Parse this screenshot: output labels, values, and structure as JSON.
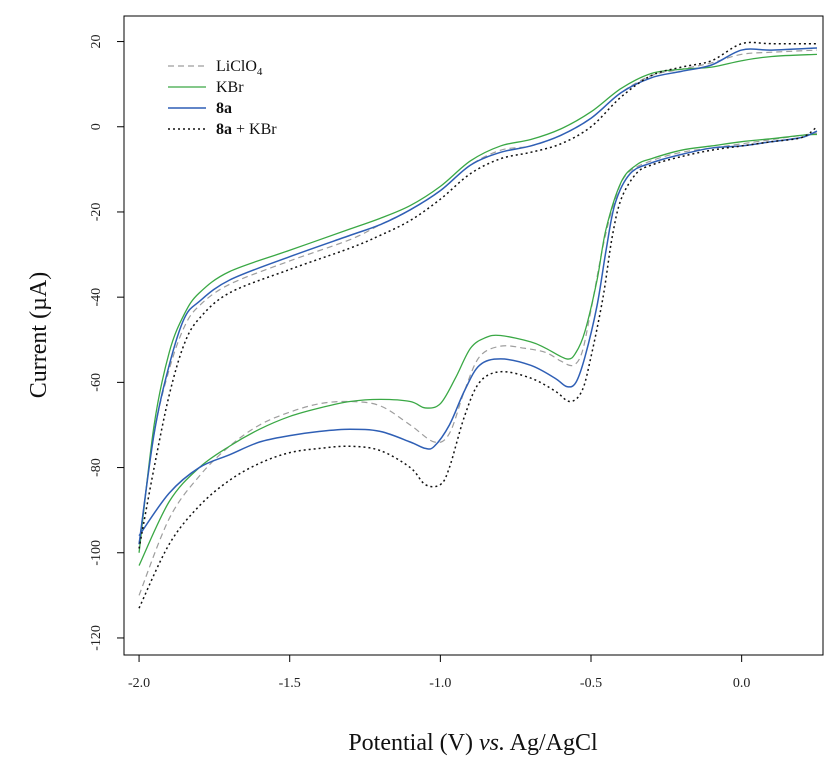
{
  "chart_data": {
    "type": "line",
    "xlabel_main": "Potential (V) ",
    "xlabel_italic": "vs.",
    "xlabel_tail": " Ag/AgCl",
    "ylabel": "Current (µA)",
    "xlim": [
      -2.05,
      0.27
    ],
    "ylim": [
      -124,
      26
    ],
    "x_ticks": [
      -2.0,
      -1.5,
      -1.0,
      -0.5,
      0.0
    ],
    "x_tick_labels": [
      "-2.0",
      "-1.5",
      "-1.0",
      "-0.5",
      "0.0"
    ],
    "y_ticks": [
      20,
      0,
      -20,
      -40,
      -60,
      -80,
      -100,
      -120
    ],
    "y_tick_labels": [
      "20",
      "0",
      "-20",
      "-40",
      "-60",
      "-80",
      "-100",
      "-120"
    ],
    "grid": false,
    "legend_position": "top-left",
    "legend": [
      {
        "label_bold": "",
        "label_main": "LiClO",
        "label_sub": "4",
        "label_tail": "",
        "color": "#9e9e9e",
        "dash": "6,4",
        "width": 1.2
      },
      {
        "label_bold": "",
        "label_main": "KBr",
        "label_sub": "",
        "label_tail": "",
        "color": "#3aa845",
        "dash": "",
        "width": 1.3
      },
      {
        "label_bold": "8a",
        "label_main": "",
        "label_sub": "",
        "label_tail": "",
        "color": "#2f5fb5",
        "dash": "",
        "width": 1.5
      },
      {
        "label_bold": "8a",
        "label_main": "",
        "label_sub": "",
        "label_tail": " + KBr",
        "color": "#111111",
        "dash": "2,3",
        "width": 1.5
      }
    ],
    "series": [
      {
        "name": "LiClO4",
        "upper": [
          [
            -2.0,
            -98
          ],
          [
            -1.95,
            -72
          ],
          [
            -1.9,
            -57
          ],
          [
            -1.85,
            -47
          ],
          [
            -1.8,
            -42
          ],
          [
            -1.7,
            -37
          ],
          [
            -1.5,
            -31.5
          ],
          [
            -1.3,
            -26.5
          ],
          [
            -1.2,
            -23
          ],
          [
            -1.1,
            -19.5
          ],
          [
            -1.0,
            -15
          ],
          [
            -0.9,
            -9
          ],
          [
            -0.8,
            -5.5
          ],
          [
            -0.7,
            -4.5
          ],
          [
            -0.6,
            -2
          ],
          [
            -0.5,
            2
          ],
          [
            -0.4,
            8
          ],
          [
            -0.3,
            12
          ],
          [
            -0.2,
            13.5
          ],
          [
            -0.1,
            15
          ],
          [
            0.0,
            17
          ],
          [
            0.1,
            17.5
          ],
          [
            0.25,
            18
          ]
        ],
        "lower": [
          [
            -2.0,
            -110
          ],
          [
            -1.9,
            -92
          ],
          [
            -1.8,
            -82
          ],
          [
            -1.7,
            -75
          ],
          [
            -1.6,
            -70
          ],
          [
            -1.5,
            -67
          ],
          [
            -1.4,
            -65
          ],
          [
            -1.3,
            -64.5
          ],
          [
            -1.2,
            -65.5
          ],
          [
            -1.1,
            -70
          ],
          [
            -1.02,
            -74
          ],
          [
            -0.97,
            -72
          ],
          [
            -0.92,
            -62
          ],
          [
            -0.87,
            -54
          ],
          [
            -0.8,
            -51.5
          ],
          [
            -0.72,
            -52
          ],
          [
            -0.65,
            -53
          ],
          [
            -0.6,
            -55
          ],
          [
            -0.56,
            -56
          ],
          [
            -0.53,
            -53
          ],
          [
            -0.5,
            -43
          ],
          [
            -0.46,
            -28
          ],
          [
            -0.42,
            -17
          ],
          [
            -0.38,
            -11
          ],
          [
            -0.3,
            -8
          ],
          [
            -0.2,
            -6
          ],
          [
            -0.1,
            -5
          ],
          [
            0.0,
            -4
          ],
          [
            0.1,
            -3
          ],
          [
            0.2,
            -2
          ],
          [
            0.25,
            -1.5
          ]
        ]
      },
      {
        "name": "KBr",
        "upper": [
          [
            -2.0,
            -100
          ],
          [
            -1.95,
            -70
          ],
          [
            -1.9,
            -53
          ],
          [
            -1.85,
            -44
          ],
          [
            -1.8,
            -39
          ],
          [
            -1.7,
            -34
          ],
          [
            -1.5,
            -29
          ],
          [
            -1.3,
            -24
          ],
          [
            -1.2,
            -21.5
          ],
          [
            -1.1,
            -18.5
          ],
          [
            -1.0,
            -14
          ],
          [
            -0.9,
            -8
          ],
          [
            -0.8,
            -4.5
          ],
          [
            -0.7,
            -3
          ],
          [
            -0.6,
            -0.5
          ],
          [
            -0.5,
            3.5
          ],
          [
            -0.4,
            9
          ],
          [
            -0.3,
            12.5
          ],
          [
            -0.2,
            13.5
          ],
          [
            -0.1,
            14
          ],
          [
            0.0,
            15.5
          ],
          [
            0.1,
            16.5
          ],
          [
            0.25,
            17
          ]
        ],
        "lower": [
          [
            -2.0,
            -103
          ],
          [
            -1.9,
            -88
          ],
          [
            -1.8,
            -80
          ],
          [
            -1.7,
            -75
          ],
          [
            -1.6,
            -71
          ],
          [
            -1.5,
            -68
          ],
          [
            -1.4,
            -66
          ],
          [
            -1.3,
            -64.5
          ],
          [
            -1.2,
            -64
          ],
          [
            -1.1,
            -64.5
          ],
          [
            -1.05,
            -66
          ],
          [
            -1.0,
            -65
          ],
          [
            -0.95,
            -59
          ],
          [
            -0.9,
            -52
          ],
          [
            -0.85,
            -49.5
          ],
          [
            -0.8,
            -49
          ],
          [
            -0.7,
            -50.5
          ],
          [
            -0.65,
            -52
          ],
          [
            -0.58,
            -54.5
          ],
          [
            -0.55,
            -53
          ],
          [
            -0.52,
            -48
          ],
          [
            -0.48,
            -36
          ],
          [
            -0.45,
            -24
          ],
          [
            -0.4,
            -13
          ],
          [
            -0.35,
            -9
          ],
          [
            -0.3,
            -7.5
          ],
          [
            -0.2,
            -5.5
          ],
          [
            -0.1,
            -4.5
          ],
          [
            0.0,
            -3.5
          ],
          [
            0.1,
            -2.8
          ],
          [
            0.2,
            -2
          ],
          [
            0.25,
            -1.8
          ]
        ]
      },
      {
        "name": "8a",
        "upper": [
          [
            -2.0,
            -98
          ],
          [
            -1.95,
            -72
          ],
          [
            -1.9,
            -56
          ],
          [
            -1.85,
            -45
          ],
          [
            -1.8,
            -41
          ],
          [
            -1.7,
            -36
          ],
          [
            -1.5,
            -30.5
          ],
          [
            -1.3,
            -25.5
          ],
          [
            -1.2,
            -23
          ],
          [
            -1.1,
            -19.5
          ],
          [
            -1.0,
            -15
          ],
          [
            -0.9,
            -9
          ],
          [
            -0.8,
            -6
          ],
          [
            -0.7,
            -4.5
          ],
          [
            -0.6,
            -2
          ],
          [
            -0.5,
            2
          ],
          [
            -0.4,
            8
          ],
          [
            -0.3,
            11.5
          ],
          [
            -0.2,
            13
          ],
          [
            -0.1,
            14.5
          ],
          [
            0.0,
            18
          ],
          [
            0.1,
            18
          ],
          [
            0.25,
            18.5
          ]
        ],
        "lower": [
          [
            -2.0,
            -96
          ],
          [
            -1.9,
            -86
          ],
          [
            -1.8,
            -80
          ],
          [
            -1.7,
            -77
          ],
          [
            -1.6,
            -74
          ],
          [
            -1.5,
            -72.5
          ],
          [
            -1.4,
            -71.5
          ],
          [
            -1.3,
            -71
          ],
          [
            -1.2,
            -71.5
          ],
          [
            -1.1,
            -74
          ],
          [
            -1.05,
            -75.5
          ],
          [
            -1.02,
            -75
          ],
          [
            -0.97,
            -70
          ],
          [
            -0.92,
            -62
          ],
          [
            -0.87,
            -56
          ],
          [
            -0.8,
            -54.5
          ],
          [
            -0.7,
            -56
          ],
          [
            -0.62,
            -59
          ],
          [
            -0.58,
            -61
          ],
          [
            -0.55,
            -60
          ],
          [
            -0.52,
            -54
          ],
          [
            -0.48,
            -42
          ],
          [
            -0.45,
            -29
          ],
          [
            -0.42,
            -18
          ],
          [
            -0.37,
            -11
          ],
          [
            -0.3,
            -8.5
          ],
          [
            -0.2,
            -6.5
          ],
          [
            -0.1,
            -5
          ],
          [
            0.0,
            -4.5
          ],
          [
            0.1,
            -3.5
          ],
          [
            0.2,
            -2.5
          ],
          [
            0.25,
            -1
          ]
        ]
      },
      {
        "name": "8a + KBr",
        "upper": [
          [
            -2.0,
            -99
          ],
          [
            -1.95,
            -80
          ],
          [
            -1.9,
            -63
          ],
          [
            -1.85,
            -51
          ],
          [
            -1.8,
            -45
          ],
          [
            -1.7,
            -39
          ],
          [
            -1.5,
            -33.5
          ],
          [
            -1.3,
            -28.5
          ],
          [
            -1.2,
            -25.5
          ],
          [
            -1.1,
            -22
          ],
          [
            -1.0,
            -17
          ],
          [
            -0.9,
            -11
          ],
          [
            -0.8,
            -7.5
          ],
          [
            -0.7,
            -6
          ],
          [
            -0.6,
            -4
          ],
          [
            -0.5,
            0
          ],
          [
            -0.4,
            7
          ],
          [
            -0.3,
            12
          ],
          [
            -0.2,
            14
          ],
          [
            -0.1,
            15.5
          ],
          [
            0.0,
            19.5
          ],
          [
            0.1,
            19.5
          ],
          [
            0.25,
            19.5
          ]
        ],
        "lower": [
          [
            -2.0,
            -113
          ],
          [
            -1.9,
            -98
          ],
          [
            -1.8,
            -89
          ],
          [
            -1.7,
            -83
          ],
          [
            -1.6,
            -79
          ],
          [
            -1.5,
            -76.5
          ],
          [
            -1.4,
            -75.5
          ],
          [
            -1.3,
            -75
          ],
          [
            -1.2,
            -76
          ],
          [
            -1.1,
            -80
          ],
          [
            -1.05,
            -84
          ],
          [
            -1.0,
            -84
          ],
          [
            -0.97,
            -80
          ],
          [
            -0.92,
            -68
          ],
          [
            -0.87,
            -60
          ],
          [
            -0.8,
            -57.5
          ],
          [
            -0.7,
            -59
          ],
          [
            -0.62,
            -62
          ],
          [
            -0.57,
            -64.5
          ],
          [
            -0.53,
            -62
          ],
          [
            -0.5,
            -54
          ],
          [
            -0.46,
            -40
          ],
          [
            -0.43,
            -26
          ],
          [
            -0.4,
            -17
          ],
          [
            -0.35,
            -11
          ],
          [
            -0.3,
            -9
          ],
          [
            -0.2,
            -7
          ],
          [
            -0.1,
            -5.5
          ],
          [
            0.0,
            -4.5
          ],
          [
            0.1,
            -3.5
          ],
          [
            0.2,
            -2.5
          ],
          [
            0.25,
            0
          ]
        ]
      }
    ]
  }
}
